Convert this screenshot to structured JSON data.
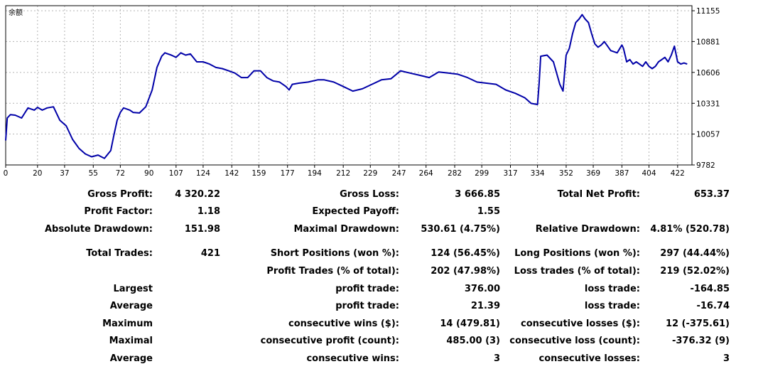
{
  "chart_data": {
    "type": "line",
    "title": "余额",
    "x_ticks": [
      0,
      20,
      37,
      55,
      72,
      90,
      107,
      124,
      142,
      159,
      177,
      194,
      212,
      229,
      247,
      264,
      282,
      299,
      317,
      334,
      352,
      369,
      387,
      404,
      422
    ],
    "y_ticks": [
      9782,
      10057,
      10331,
      10606,
      10881,
      11155
    ],
    "xlim": [
      0,
      431
    ],
    "ylim": [
      9782,
      11200
    ],
    "grid": true,
    "series": [
      {
        "name": "余额",
        "color": "#0000a8",
        "x": [
          0,
          1,
          3,
          6,
          10,
          14,
          18,
          20,
          23,
          26,
          30,
          34,
          38,
          42,
          46,
          50,
          54,
          58,
          62,
          66,
          68,
          70,
          72,
          74,
          76,
          78,
          80,
          84,
          88,
          92,
          95,
          98,
          100,
          102,
          104,
          107,
          110,
          113,
          116,
          120,
          124,
          128,
          132,
          136,
          140,
          144,
          148,
          152,
          156,
          160,
          164,
          168,
          172,
          176,
          178,
          180,
          184,
          190,
          196,
          200,
          206,
          212,
          218,
          224,
          230,
          236,
          242,
          248,
          254,
          260,
          266,
          272,
          278,
          284,
          290,
          296,
          302,
          308,
          314,
          320,
          326,
          330,
          334,
          335,
          336,
          340,
          344,
          348,
          350,
          351,
          352,
          354,
          356,
          358,
          360,
          362,
          364,
          366,
          368,
          370,
          372,
          374,
          376,
          380,
          384,
          387,
          388,
          390,
          392,
          394,
          396,
          398,
          400,
          402,
          404,
          406,
          408,
          410,
          414,
          416,
          418,
          420,
          422,
          424,
          426,
          428
        ],
        "values": [
          10000,
          10200,
          10230,
          10225,
          10200,
          10290,
          10270,
          10295,
          10270,
          10290,
          10300,
          10180,
          10130,
          10010,
          9930,
          9880,
          9855,
          9870,
          9840,
          9910,
          10050,
          10180,
          10250,
          10290,
          10280,
          10270,
          10250,
          10245,
          10300,
          10450,
          10650,
          10750,
          10780,
          10770,
          10760,
          10740,
          10780,
          10760,
          10770,
          10700,
          10700,
          10680,
          10650,
          10640,
          10620,
          10600,
          10560,
          10560,
          10620,
          10620,
          10560,
          10530,
          10520,
          10480,
          10450,
          10500,
          10510,
          10520,
          10540,
          10540,
          10520,
          10480,
          10440,
          10460,
          10500,
          10540,
          10550,
          10620,
          10600,
          10580,
          10560,
          10610,
          10600,
          10590,
          10560,
          10520,
          10510,
          10500,
          10450,
          10420,
          10380,
          10330,
          10320,
          10500,
          10750,
          10760,
          10700,
          10500,
          10440,
          10600,
          10760,
          10820,
          10950,
          11050,
          11080,
          11120,
          11080,
          11050,
          10950,
          10860,
          10830,
          10850,
          10880,
          10800,
          10780,
          10850,
          10820,
          10700,
          10720,
          10680,
          10700,
          10680,
          10660,
          10700,
          10660,
          10640,
          10660,
          10700,
          10740,
          10700,
          10760,
          10840,
          10700,
          10680,
          10690,
          10680
        ]
      }
    ]
  },
  "stats": {
    "gross_profit": {
      "label": "Gross Profit:",
      "value": "4 320.22"
    },
    "gross_loss": {
      "label": "Gross Loss:",
      "value": "3 666.85"
    },
    "total_net_profit": {
      "label": "Total Net Profit:",
      "value": "653.37"
    },
    "profit_factor": {
      "label": "Profit Factor:",
      "value": "1.18"
    },
    "expected_payoff": {
      "label": "Expected Payoff:",
      "value": "1.55"
    },
    "absolute_drawdown": {
      "label": "Absolute Drawdown:",
      "value": "151.98"
    },
    "maximal_drawdown": {
      "label": "Maximal Drawdown:",
      "value": "530.61 (4.75%)"
    },
    "relative_drawdown": {
      "label": "Relative Drawdown:",
      "value": "4.81% (520.78)"
    },
    "total_trades": {
      "label": "Total Trades:",
      "value": "421"
    },
    "short_positions": {
      "label": "Short Positions (won %):",
      "value": "124 (56.45%)"
    },
    "long_positions": {
      "label": "Long Positions (won %):",
      "value": "297 (44.44%)"
    },
    "profit_trades": {
      "label": "Profit Trades (% of total):",
      "value": "202 (47.98%)"
    },
    "loss_trades": {
      "label": "Loss trades (% of total):",
      "value": "219 (52.02%)"
    },
    "largest": {
      "group": "Largest",
      "profit_label": "profit trade:",
      "profit_value": "376.00",
      "loss_label": "loss trade:",
      "loss_value": "-164.85"
    },
    "average": {
      "group": "Average",
      "profit_label": "profit trade:",
      "profit_value": "21.39",
      "loss_label": "loss trade:",
      "loss_value": "-16.74"
    },
    "maximum": {
      "group": "Maximum",
      "profit_label": "consecutive wins ($):",
      "profit_value": "14 (479.81)",
      "loss_label": "consecutive losses ($):",
      "loss_value": "12 (-375.61)"
    },
    "maximal": {
      "group": "Maximal",
      "profit_label": "consecutive profit (count):",
      "profit_value": "485.00 (3)",
      "loss_label": "consecutive loss (count):",
      "loss_value": "-376.32 (9)"
    },
    "average_consec": {
      "group": "Average",
      "profit_label": "consecutive wins:",
      "profit_value": "3",
      "loss_label": "consecutive losses:",
      "loss_value": "3"
    }
  }
}
